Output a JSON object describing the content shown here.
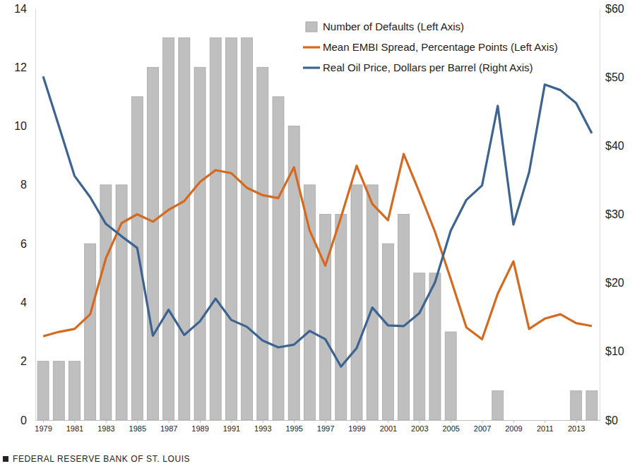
{
  "chart_data": {
    "type": "bar",
    "source": "FEDERAL RESERVE BANK OF ST. LOUIS",
    "legend": "upper right",
    "x": [
      1979,
      1980,
      1981,
      1982,
      1983,
      1984,
      1985,
      1986,
      1987,
      1988,
      1989,
      1990,
      1991,
      1992,
      1993,
      1994,
      1995,
      1996,
      1997,
      1998,
      1999,
      2000,
      2001,
      2002,
      2003,
      2004,
      2005,
      2006,
      2007,
      2008,
      2009,
      2010,
      2011,
      2012,
      2013,
      2014
    ],
    "xlim": [
      1978.5,
      2014.5
    ],
    "xticks": [
      1979,
      1981,
      1983,
      1985,
      1987,
      1989,
      1991,
      1993,
      1995,
      1997,
      1999,
      2001,
      2003,
      2005,
      2007,
      2009,
      2011,
      2013
    ],
    "ylim": [
      0,
      14
    ],
    "yticks": [
      0,
      2,
      4,
      6,
      8,
      10,
      12,
      14
    ],
    "y2lim": [
      0,
      60
    ],
    "y2ticks": [
      {
        "value": 0,
        "label": "$0"
      },
      {
        "value": 10,
        "label": "$10"
      },
      {
        "value": 20,
        "label": "$20"
      },
      {
        "value": 30,
        "label": "$30"
      },
      {
        "value": 40,
        "label": "$40"
      },
      {
        "value": 50,
        "label": "$50"
      },
      {
        "value": 60,
        "label": "$60"
      }
    ],
    "series": [
      {
        "name": "Number of Defaults (Left Axis)",
        "type": "bar",
        "color": "#bfbfbf",
        "values": [
          2,
          2,
          2,
          6,
          8,
          8,
          11,
          12,
          13,
          13,
          12,
          13,
          13,
          13,
          12,
          11,
          10,
          8,
          7,
          7,
          8,
          8,
          6,
          7,
          5,
          5,
          3,
          0,
          0,
          1,
          0,
          0,
          0,
          0,
          1,
          1
        ]
      },
      {
        "name": "Mean EMBI Spread, Percentage Points (Left Axis)",
        "type": "line",
        "color": "#d5691f",
        "values": [
          2.85,
          3.0,
          3.1,
          3.6,
          5.5,
          6.7,
          7.0,
          6.75,
          7.15,
          7.45,
          8.1,
          8.5,
          8.4,
          7.9,
          7.65,
          7.55,
          8.6,
          6.45,
          5.25,
          6.9,
          8.65,
          7.35,
          6.8,
          9.05,
          7.75,
          6.4,
          4.8,
          3.15,
          2.75,
          4.3,
          5.4,
          3.1,
          3.45,
          3.6,
          3.3,
          3.2
        ]
      },
      {
        "name": "Real Oil Price, Dollars per Barrel (Right Axis)",
        "type": "line",
        "color": "#3d6491",
        "axis": "y2",
        "values": [
          50.1,
          42.9,
          35.6,
          32.5,
          28.6,
          26.8,
          25.1,
          12.3,
          16.1,
          12.4,
          14.4,
          17.7,
          14.6,
          13.6,
          11.6,
          10.6,
          11.0,
          13.0,
          11.8,
          7.8,
          10.5,
          16.4,
          13.8,
          13.7,
          15.6,
          20.1,
          27.6,
          32.1,
          34.2,
          45.8,
          28.5,
          36.1,
          48.9,
          48.1,
          46.2,
          41.8
        ]
      }
    ]
  }
}
